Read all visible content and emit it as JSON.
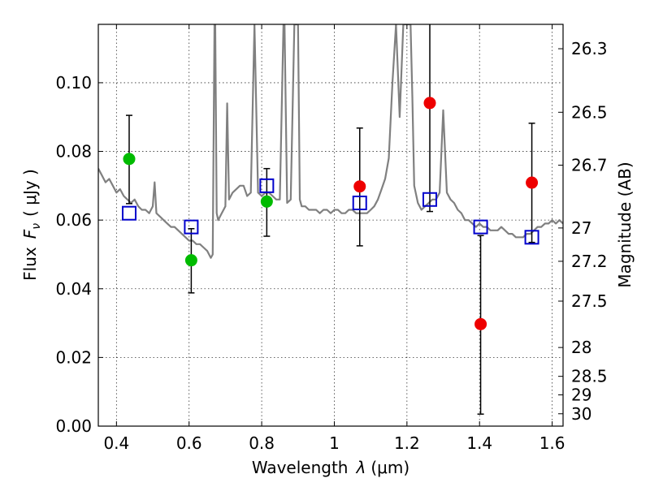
{
  "chart_data": {
    "type": "scatter",
    "xlabel": "Wavelength",
    "xlabel_symbol": "λ",
    "xlabel_unit": "(μm)",
    "ylabel": "Flux",
    "ylabel_symbol": "F",
    "ylabel_subscript": "ν",
    "ylabel_unit": "( μJy )",
    "y2label": "Magnitude (AB)",
    "xlim": [
      0.35,
      1.63
    ],
    "ylim": [
      0.0,
      0.117
    ],
    "grid": true,
    "x_ticks": [
      0.4,
      0.6,
      0.8,
      1.0,
      1.2,
      1.4,
      1.6
    ],
    "x_tick_labels": [
      "0.4",
      "0.6",
      "0.8",
      "1",
      "1.2",
      "1.4",
      "1.6"
    ],
    "y_ticks": [
      0.0,
      0.02,
      0.04,
      0.06,
      0.08,
      0.1
    ],
    "y_tick_labels": [
      "0.00",
      "0.02",
      "0.04",
      "0.06",
      "0.08",
      "0.10"
    ],
    "y2_ticks": [
      {
        "label": "26.3",
        "flux": 0.1099
      },
      {
        "label": "26.5",
        "flux": 0.0914
      },
      {
        "label": "26.7",
        "flux": 0.076
      },
      {
        "label": "27",
        "flux": 0.0577
      },
      {
        "label": "27.2",
        "flux": 0.048
      },
      {
        "label": "27.5",
        "flux": 0.0364
      },
      {
        "label": "28",
        "flux": 0.0229
      },
      {
        "label": "28.5",
        "flux": 0.0145
      },
      {
        "label": "29",
        "flux": 0.0091
      },
      {
        "label": "30",
        "flux": 0.0036
      }
    ],
    "series": [
      {
        "kind": "model_spectrum",
        "color": "#808080",
        "x": [
          0.35,
          0.36,
          0.37,
          0.38,
          0.39,
          0.4,
          0.41,
          0.42,
          0.43,
          0.44,
          0.45,
          0.46,
          0.47,
          0.48,
          0.49,
          0.5,
          0.505,
          0.51,
          0.52,
          0.53,
          0.54,
          0.55,
          0.56,
          0.57,
          0.58,
          0.59,
          0.6,
          0.61,
          0.62,
          0.63,
          0.64,
          0.65,
          0.66,
          0.665,
          0.67,
          0.672,
          0.676,
          0.68,
          0.69,
          0.7,
          0.705,
          0.71,
          0.72,
          0.73,
          0.74,
          0.75,
          0.76,
          0.77,
          0.78,
          0.79,
          0.8,
          0.81,
          0.82,
          0.83,
          0.84,
          0.85,
          0.86,
          0.863,
          0.87,
          0.88,
          0.89,
          0.895,
          0.9,
          0.905,
          0.91,
          0.92,
          0.93,
          0.94,
          0.95,
          0.96,
          0.97,
          0.98,
          0.99,
          1.0,
          1.01,
          1.02,
          1.03,
          1.04,
          1.05,
          1.06,
          1.07,
          1.08,
          1.09,
          1.1,
          1.11,
          1.12,
          1.13,
          1.14,
          1.15,
          1.16,
          1.17,
          1.18,
          1.19,
          1.2,
          1.205,
          1.21,
          1.215,
          1.22,
          1.23,
          1.24,
          1.25,
          1.26,
          1.27,
          1.28,
          1.29,
          1.3,
          1.31,
          1.32,
          1.33,
          1.34,
          1.35,
          1.36,
          1.37,
          1.38,
          1.39,
          1.4,
          1.41,
          1.42,
          1.43,
          1.44,
          1.45,
          1.46,
          1.47,
          1.48,
          1.49,
          1.5,
          1.51,
          1.52,
          1.53,
          1.54,
          1.55,
          1.56,
          1.57,
          1.58,
          1.59,
          1.6,
          1.61,
          1.62,
          1.63
        ],
        "y": [
          0.075,
          0.073,
          0.071,
          0.072,
          0.07,
          0.068,
          0.069,
          0.067,
          0.066,
          0.065,
          0.066,
          0.064,
          0.063,
          0.063,
          0.062,
          0.064,
          0.071,
          0.062,
          0.061,
          0.06,
          0.059,
          0.058,
          0.058,
          0.057,
          0.056,
          0.055,
          0.054,
          0.054,
          0.053,
          0.053,
          0.052,
          0.051,
          0.049,
          0.05,
          0.117,
          0.117,
          0.062,
          0.06,
          0.062,
          0.064,
          0.094,
          0.066,
          0.068,
          0.069,
          0.07,
          0.07,
          0.067,
          0.068,
          0.117,
          0.068,
          0.067,
          0.068,
          0.068,
          0.067,
          0.066,
          0.066,
          0.117,
          0.117,
          0.065,
          0.066,
          0.117,
          0.117,
          0.117,
          0.066,
          0.064,
          0.064,
          0.063,
          0.063,
          0.063,
          0.062,
          0.063,
          0.063,
          0.062,
          0.063,
          0.063,
          0.062,
          0.062,
          0.063,
          0.063,
          0.062,
          0.062,
          0.062,
          0.062,
          0.063,
          0.064,
          0.066,
          0.069,
          0.072,
          0.078,
          0.1,
          0.117,
          0.09,
          0.117,
          0.117,
          0.117,
          0.117,
          0.096,
          0.07,
          0.065,
          0.063,
          0.064,
          0.065,
          0.066,
          0.066,
          0.068,
          0.092,
          0.068,
          0.066,
          0.065,
          0.063,
          0.062,
          0.06,
          0.06,
          0.059,
          0.058,
          0.059,
          0.058,
          0.058,
          0.057,
          0.057,
          0.057,
          0.058,
          0.057,
          0.056,
          0.056,
          0.055,
          0.055,
          0.055,
          0.056,
          0.056,
          0.057,
          0.058,
          0.058,
          0.059,
          0.059,
          0.06,
          0.059,
          0.06,
          0.059
        ]
      },
      {
        "kind": "model_photometry",
        "marker": "open-square",
        "color": "#0000cc",
        "x": [
          0.435,
          0.606,
          0.814,
          1.07,
          1.263,
          1.403,
          1.544
        ],
        "y": [
          0.062,
          0.058,
          0.07,
          0.065,
          0.066,
          0.058,
          0.055
        ]
      },
      {
        "kind": "observed_photometry_green",
        "marker": "filled-circle",
        "color": "#00bb00",
        "x": [
          0.435,
          0.606,
          0.814
        ],
        "y": [
          0.0778,
          0.0483,
          0.0654
        ],
        "yerr_low": [
          0.0648,
          0.0388,
          0.0553
        ],
        "yerr_high": [
          0.0905,
          0.0575,
          0.075
        ]
      },
      {
        "kind": "observed_photometry_red",
        "marker": "filled-circle",
        "color": "#ee0000",
        "x": [
          1.07,
          1.263,
          1.403,
          1.544
        ],
        "y": [
          0.0698,
          0.0941,
          0.0297,
          0.0709
        ],
        "yerr_low": [
          0.0525,
          0.0625,
          0.0035,
          0.0535
        ],
        "yerr_high": [
          0.0868,
          0.117,
          0.0555,
          0.0882
        ]
      }
    ]
  }
}
